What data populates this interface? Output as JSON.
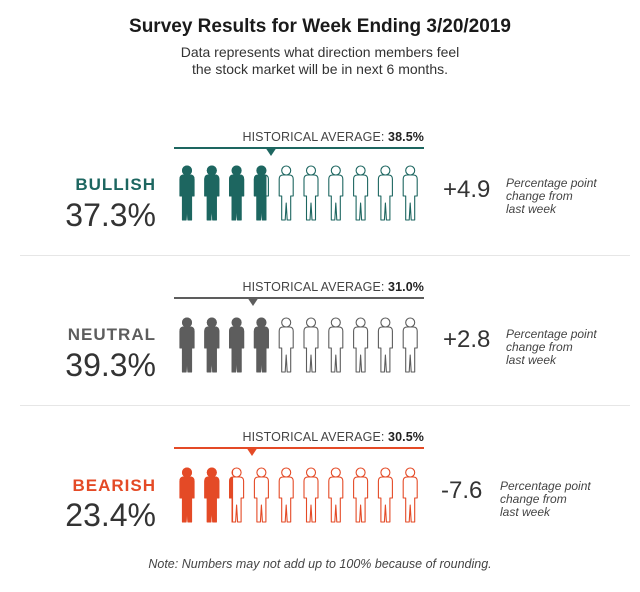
{
  "title": "Survey Results for Week Ending 3/20/2019",
  "subtitle": "Data represents what direction members feel the stock market will be in next 6 months.",
  "footnote": "Note: Numbers may not add up to 100% because of rounding.",
  "hist_prefix": "HISTORICAL AVERAGE:",
  "icon_name": "person-icon",
  "chart_data": {
    "type": "pictograph",
    "icons_per_row": 10,
    "series": [
      {
        "key": "bullish",
        "label": "BULLISH",
        "value": 37.3,
        "value_text": "37.3%",
        "historical_average": 38.5,
        "historical_text": "38.5%",
        "change_text": "+4.9",
        "change_note": [
          "Percentage point",
          "change from",
          "last week"
        ],
        "color": "#1d6660"
      },
      {
        "key": "neutral",
        "label": "NEUTRAL",
        "value": 39.3,
        "value_text": "39.3%",
        "historical_average": 31.0,
        "historical_text": "31.0%",
        "change_text": "+2.8",
        "change_note": [
          "Percentage point",
          "change from",
          "last week"
        ],
        "color": "#5d5d5d"
      },
      {
        "key": "bearish",
        "label": "BEARISH",
        "value": 23.4,
        "value_text": "23.4%",
        "historical_average": 30.5,
        "historical_text": "30.5%",
        "change_text": "-7.6",
        "change_note": [
          "Percentage point",
          "change from",
          "last week"
        ],
        "color": "#e44a26"
      }
    ]
  }
}
